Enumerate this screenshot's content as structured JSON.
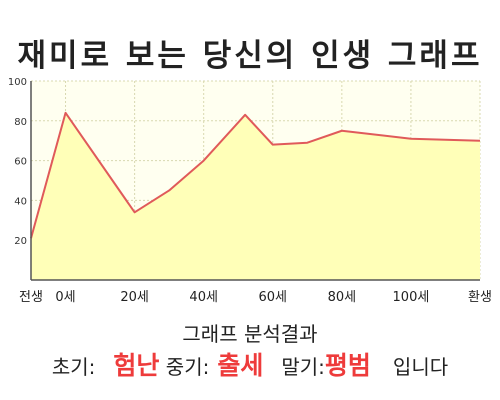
{
  "title": "재미로 보는 당신의 인생 그래프",
  "analysis": {
    "heading": "그래프 분석결과",
    "early_label": "초기:",
    "early_value": "험난",
    "mid_label": "중기:",
    "mid_value": "출세",
    "late_label": "말기:",
    "late_value": "평범",
    "suffix": "입니다"
  },
  "colors": {
    "fill": "#ffffb8",
    "line": "#e05a5a",
    "plot_bg": "#fffff0",
    "grid": "#d8d8b0",
    "highlight": "#ee3b3b"
  },
  "chart_data": {
    "type": "area",
    "title": "재미로 보는 당신의 인생 그래프",
    "xlabel": "",
    "ylabel": "",
    "grid": true,
    "ylim": [
      0,
      100
    ],
    "xlim": [
      -10,
      100
    ],
    "yticks": [
      20,
      40,
      60,
      80,
      100
    ],
    "xticks": [
      {
        "x": -10,
        "label": "전생"
      },
      {
        "x": 0,
        "label": "0세"
      },
      {
        "x": 20,
        "label": "20세"
      },
      {
        "x": 40,
        "label": "40세"
      },
      {
        "x": 60,
        "label": "60세"
      },
      {
        "x": 80,
        "label": "80세"
      },
      {
        "x": 100,
        "label": "100세"
      },
      {
        "x": 120,
        "label": "환생"
      }
    ],
    "series": [
      {
        "points": [
          [
            -10,
            21
          ],
          [
            0,
            84
          ],
          [
            20,
            34
          ],
          [
            30,
            45
          ],
          [
            40,
            60
          ],
          [
            52,
            83
          ],
          [
            60,
            68
          ],
          [
            70,
            69
          ],
          [
            80,
            75
          ],
          [
            100,
            71
          ],
          [
            120,
            70
          ]
        ]
      }
    ]
  }
}
